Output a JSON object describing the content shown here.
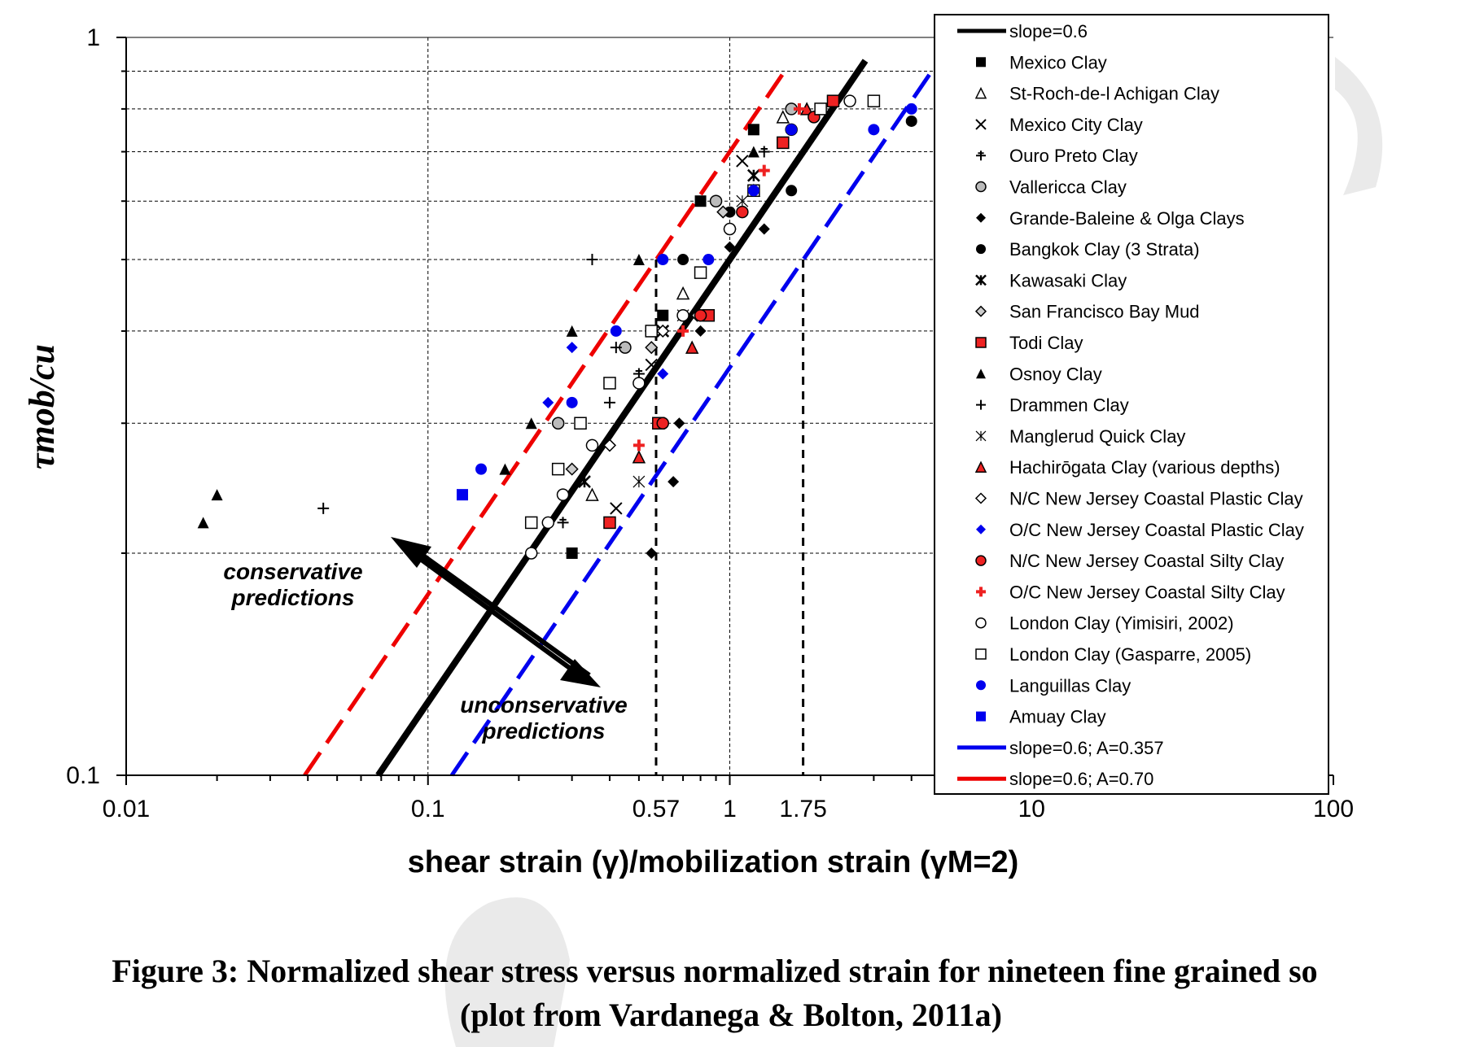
{
  "chart_data": {
    "type": "scatter",
    "xscale": "log",
    "yscale": "log",
    "xlim": [
      0.01,
      100
    ],
    "ylim": [
      0.1,
      1
    ],
    "x_ticks": [
      "0.01",
      "0.1",
      "0.57",
      "1",
      "1.75",
      "10",
      "100"
    ],
    "y_ticks": [
      "0.1",
      "1"
    ],
    "xlabel": "shear strain (γ)/mobilization strain (γM=2)",
    "ylabel": "τmob/cu",
    "reference_lines": [
      {
        "name": "slope=0.6",
        "color": "#000000",
        "A": 0.5,
        "slope": 0.6
      },
      {
        "name": "slope=0.6; A=0.357",
        "color": "#0000ee",
        "A": 0.357,
        "slope": 0.6
      },
      {
        "name": "slope=0.6; A=0.70",
        "color": "#ee0000",
        "A": 0.7,
        "slope": 0.6
      }
    ],
    "series": [
      {
        "name": "Mexico Clay",
        "marker": "square",
        "color": "#000000",
        "x": [
          0.3,
          0.6,
          1.2,
          0.8
        ],
        "y": [
          0.2,
          0.42,
          0.75,
          0.6
        ]
      },
      {
        "name": "St-Roch-de-l Achigan Clay",
        "marker": "triangle-open",
        "color": "#000000",
        "x": [
          0.35,
          0.7,
          1.5
        ],
        "y": [
          0.24,
          0.45,
          0.78
        ]
      },
      {
        "name": "Mexico City Clay",
        "marker": "x",
        "color": "#000000",
        "x": [
          0.42,
          0.55,
          1.1
        ],
        "y": [
          0.23,
          0.36,
          0.68
        ]
      },
      {
        "name": "Ouro Preto Clay",
        "marker": "plus-bold",
        "color": "#000000",
        "x": [
          0.28,
          0.5,
          1.3
        ],
        "y": [
          0.22,
          0.35,
          0.7
        ]
      },
      {
        "name": "Vallericca Clay",
        "marker": "circle-grey",
        "color": "#999999",
        "x": [
          0.27,
          0.45,
          0.9,
          1.6
        ],
        "y": [
          0.3,
          0.38,
          0.6,
          0.8
        ]
      },
      {
        "name": "Grande-Baleine & Olga Clays",
        "marker": "diamond",
        "color": "#000000",
        "x": [
          0.55,
          0.65,
          0.68,
          1.3,
          0.8,
          1.0
        ],
        "y": [
          0.2,
          0.25,
          0.3,
          0.55,
          0.4,
          0.52
        ]
      },
      {
        "name": "Bangkok Clay (3 Strata)",
        "marker": "circle",
        "color": "#000000",
        "x": [
          1.6,
          4.0,
          0.7,
          1.0
        ],
        "y": [
          0.62,
          0.77,
          0.5,
          0.58
        ]
      },
      {
        "name": "Kawasaki Clay",
        "marker": "asterisk",
        "color": "#000000",
        "x": [
          0.33,
          0.6,
          1.2
        ],
        "y": [
          0.25,
          0.4,
          0.65
        ]
      },
      {
        "name": "San Francisco Bay Mud",
        "marker": "diamond-grey",
        "color": "#999999",
        "x": [
          0.3,
          0.55,
          0.95,
          0.78
        ],
        "y": [
          0.26,
          0.38,
          0.58,
          0.42
        ]
      },
      {
        "name": "Todi Clay",
        "marker": "square-red",
        "color": "#ee2222",
        "x": [
          0.4,
          0.58,
          0.85,
          1.5,
          2.2
        ],
        "y": [
          0.22,
          0.3,
          0.42,
          0.72,
          0.82
        ]
      },
      {
        "name": "Osnoy Clay",
        "marker": "triangle",
        "color": "#000000",
        "x": [
          0.018,
          0.02,
          0.18,
          0.22,
          0.3,
          0.5,
          1.2
        ],
        "y": [
          0.22,
          0.24,
          0.26,
          0.3,
          0.4,
          0.5,
          0.7
        ]
      },
      {
        "name": "Drammen Clay",
        "marker": "plus",
        "color": "#000000",
        "x": [
          0.045,
          0.4,
          0.42,
          0.35
        ],
        "y": [
          0.23,
          0.32,
          0.38,
          0.5
        ]
      },
      {
        "name": "Manglerud Quick Clay",
        "marker": "asterisk-thin",
        "color": "#000000",
        "x": [
          0.5,
          0.7,
          1.1
        ],
        "y": [
          0.25,
          0.42,
          0.6
        ]
      },
      {
        "name": "Hachirōgata Clay (various depths)",
        "marker": "triangle-red",
        "color": "#ee2222",
        "x": [
          0.5,
          0.75,
          1.2,
          1.8
        ],
        "y": [
          0.27,
          0.38,
          0.62,
          0.8
        ]
      },
      {
        "name": "N/C New Jersey Coastal Plastic Clay",
        "marker": "diamond-open",
        "color": "#000000",
        "x": [
          0.4,
          0.6,
          1.0
        ],
        "y": [
          0.28,
          0.4,
          0.55
        ]
      },
      {
        "name": "O/C New Jersey Coastal Plastic Clay",
        "marker": "diamond-blue",
        "color": "#0000ee",
        "x": [
          0.25,
          0.3,
          0.6
        ],
        "y": [
          0.32,
          0.38,
          0.35
        ]
      },
      {
        "name": "N/C New Jersey Coastal Silty Clay",
        "marker": "circle-red",
        "color": "#ee2222",
        "x": [
          0.6,
          0.8,
          1.1,
          1.9
        ],
        "y": [
          0.3,
          0.42,
          0.58,
          0.78
        ]
      },
      {
        "name": "O/C New Jersey Coastal Silty Clay",
        "marker": "plus-red",
        "color": "#ee2222",
        "x": [
          0.5,
          0.7,
          1.3,
          1.7
        ],
        "y": [
          0.28,
          0.4,
          0.66,
          0.8
        ]
      },
      {
        "name": "London Clay (Yimisiri, 2002)",
        "marker": "circle-open",
        "color": "#000000",
        "x": [
          0.22,
          0.25,
          0.28,
          0.35,
          0.5,
          0.7,
          1.0,
          1.6,
          2.5
        ],
        "y": [
          0.2,
          0.22,
          0.24,
          0.28,
          0.34,
          0.42,
          0.55,
          0.75,
          0.82
        ]
      },
      {
        "name": "London Clay (Gasparre, 2005)",
        "marker": "square-open",
        "color": "#000000",
        "x": [
          0.22,
          0.27,
          0.32,
          0.4,
          0.55,
          0.8,
          1.2,
          2.0,
          3.0
        ],
        "y": [
          0.22,
          0.26,
          0.3,
          0.34,
          0.4,
          0.48,
          0.62,
          0.8,
          0.82
        ]
      },
      {
        "name": "Languillas Clay",
        "marker": "circle-blue",
        "color": "#0000ee",
        "x": [
          0.15,
          0.3,
          0.42,
          0.6,
          0.85,
          1.2,
          1.6,
          3.0,
          4.0
        ],
        "y": [
          0.26,
          0.32,
          0.4,
          0.5,
          0.5,
          0.62,
          0.75,
          0.75,
          0.8
        ]
      },
      {
        "name": "Amuay Clay",
        "marker": "square-blue",
        "color": "#0000ee",
        "x": [
          0.13
        ],
        "y": [
          0.24
        ]
      }
    ]
  },
  "annotations": {
    "conservative": [
      "conservative",
      "predictions"
    ],
    "unconservative": [
      "unconservative",
      "predictions"
    ]
  },
  "caption": {
    "line1": "Figure 3: Normalized shear stress versus normalized strain for nineteen fine grained so",
    "line2": "(plot from Vardanega & Bolton, 2011a)"
  }
}
